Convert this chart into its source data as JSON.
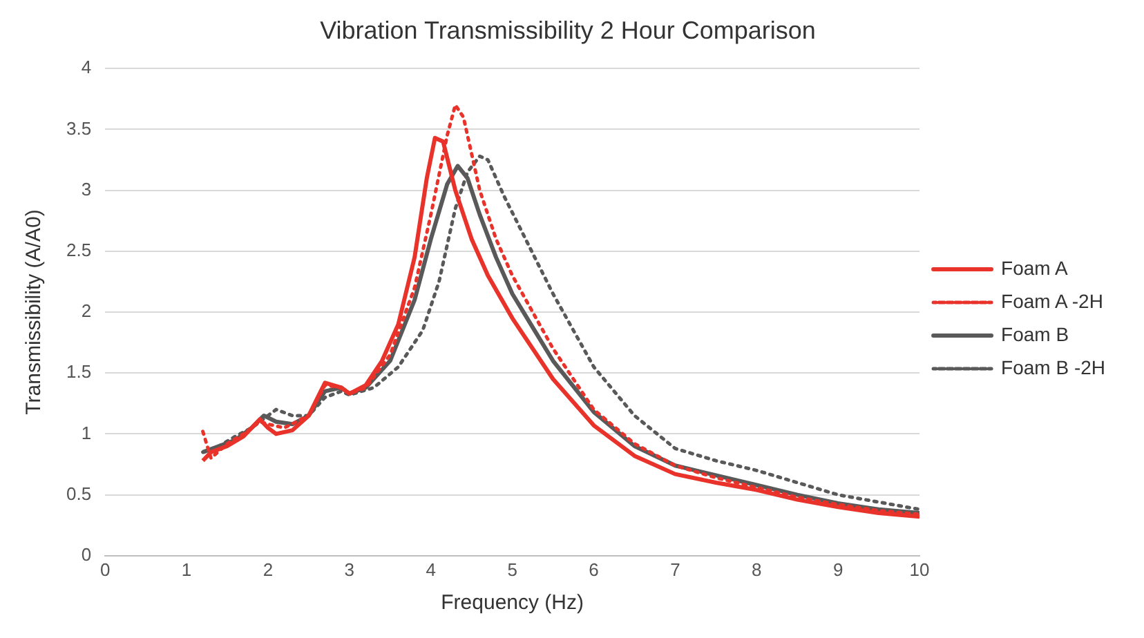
{
  "chart_data": {
    "type": "line",
    "title": "Vibration Transmissibility 2 Hour Comparison",
    "xlabel": "Frequency (Hz)",
    "ylabel": "Transmissibility (A/A0)",
    "xlim": [
      0,
      10
    ],
    "xticks": [
      0,
      1,
      2,
      3,
      4,
      5,
      6,
      7,
      8,
      9,
      10
    ],
    "ylim": [
      0,
      4
    ],
    "yticks": [
      0,
      0.5,
      1,
      1.5,
      2,
      2.5,
      3,
      3.5,
      4
    ],
    "grid": "y",
    "legend": "right",
    "marker": "none",
    "series": [
      {
        "name": "Foam A",
        "color": "#e8322a",
        "line_style": "solid",
        "x": [
          1.2,
          1.3,
          1.5,
          1.7,
          1.9,
          2.0,
          2.1,
          2.3,
          2.5,
          2.7,
          2.9,
          3.0,
          3.2,
          3.4,
          3.6,
          3.8,
          3.95,
          4.05,
          4.15,
          4.3,
          4.5,
          4.7,
          5.0,
          5.5,
          6.0,
          6.5,
          7.0,
          7.5,
          8.0,
          8.5,
          9.0,
          9.5,
          10
        ],
        "values": [
          0.78,
          0.85,
          0.9,
          0.98,
          1.12,
          1.05,
          1.0,
          1.03,
          1.15,
          1.42,
          1.38,
          1.33,
          1.4,
          1.6,
          1.9,
          2.45,
          3.1,
          3.43,
          3.4,
          3.0,
          2.6,
          2.3,
          1.95,
          1.45,
          1.07,
          0.82,
          0.67,
          0.6,
          0.54,
          0.46,
          0.4,
          0.35,
          0.32
        ]
      },
      {
        "name": "Foam A -2H",
        "color": "#e8322a",
        "line_style": "dotted",
        "x": [
          1.2,
          1.3,
          1.5,
          1.7,
          1.9,
          2.0,
          2.2,
          2.5,
          2.7,
          2.9,
          3.0,
          3.2,
          3.5,
          3.8,
          4.0,
          4.2,
          4.3,
          4.4,
          4.6,
          4.8,
          5.0,
          5.5,
          6.0,
          6.5,
          7.0,
          7.5,
          8.0,
          8.5,
          9.0,
          9.5,
          10
        ],
        "values": [
          1.02,
          0.8,
          0.92,
          1.0,
          1.1,
          1.08,
          1.05,
          1.15,
          1.4,
          1.38,
          1.33,
          1.38,
          1.65,
          2.2,
          2.8,
          3.45,
          3.7,
          3.6,
          3.0,
          2.6,
          2.3,
          1.7,
          1.2,
          0.92,
          0.74,
          0.64,
          0.56,
          0.48,
          0.42,
          0.37,
          0.34
        ]
      },
      {
        "name": "Foam B",
        "color": "#595959",
        "line_style": "solid",
        "x": [
          1.2,
          1.4,
          1.6,
          1.8,
          1.95,
          2.1,
          2.3,
          2.5,
          2.7,
          2.9,
          3.0,
          3.2,
          3.5,
          3.8,
          4.0,
          4.2,
          4.33,
          4.45,
          4.6,
          4.8,
          5.0,
          5.5,
          6.0,
          6.5,
          7.0,
          7.5,
          8.0,
          8.5,
          9.0,
          9.5,
          10
        ],
        "values": [
          0.85,
          0.9,
          0.95,
          1.05,
          1.15,
          1.1,
          1.08,
          1.15,
          1.35,
          1.38,
          1.33,
          1.38,
          1.6,
          2.1,
          2.6,
          3.05,
          3.2,
          3.1,
          2.8,
          2.45,
          2.15,
          1.6,
          1.18,
          0.9,
          0.74,
          0.66,
          0.58,
          0.5,
          0.43,
          0.38,
          0.35
        ]
      },
      {
        "name": "Foam B -2H",
        "color": "#595959",
        "line_style": "dotted",
        "x": [
          1.2,
          1.4,
          1.6,
          1.8,
          2.0,
          2.1,
          2.3,
          2.5,
          2.7,
          2.9,
          3.0,
          3.3,
          3.6,
          3.9,
          4.1,
          4.3,
          4.45,
          4.6,
          4.7,
          4.9,
          5.2,
          5.5,
          6.0,
          6.5,
          7.0,
          7.5,
          8.0,
          8.5,
          9.0,
          9.5,
          10
        ],
        "values": [
          0.85,
          0.9,
          0.98,
          1.05,
          1.15,
          1.2,
          1.15,
          1.15,
          1.3,
          1.35,
          1.32,
          1.38,
          1.55,
          1.85,
          2.25,
          2.85,
          3.15,
          3.28,
          3.25,
          2.95,
          2.55,
          2.15,
          1.55,
          1.15,
          0.88,
          0.78,
          0.7,
          0.6,
          0.5,
          0.44,
          0.38
        ]
      }
    ]
  }
}
